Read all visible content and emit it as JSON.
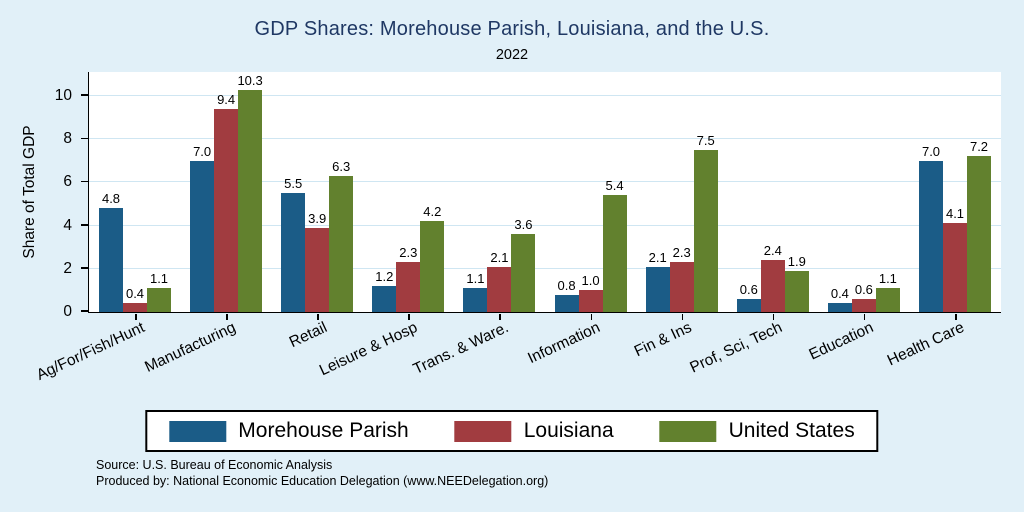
{
  "notes": {
    "source": "Source: U.S. Bureau of Economic Analysis",
    "produced_by": "Produced by: National Economic Education Delegation (www.NEEDelegation.org)"
  },
  "colors": {
    "background": "#e1f0f8",
    "plot_background": "#ffffff",
    "gridline": "#cfe6f2",
    "title": "#1f3864",
    "axis": "#000000",
    "morehouse_parish": "#1b5c87",
    "louisiana": "#a13c40",
    "united_states": "#62812e"
  },
  "chart_data": {
    "type": "bar",
    "title": "GDP Shares: Morehouse Parish, Louisiana, and the U.S.",
    "subtitle": "2022",
    "xlabel": "",
    "ylabel": "Share of Total GDP",
    "ylim": [
      0,
      11
    ],
    "yticks": [
      0,
      2,
      4,
      6,
      8,
      10
    ],
    "grid": true,
    "legend_position": "bottom",
    "categories": [
      "Ag/For/Fish/Hunt",
      "Manufacturing",
      "Retail",
      "Leisure & Hosp",
      "Trans. & Ware.",
      "Information",
      "Fin & Ins",
      "Prof, Sci, Tech",
      "Education",
      "Health Care"
    ],
    "series": [
      {
        "name": "Morehouse Parish",
        "color": "#1b5c87",
        "values": [
          4.8,
          7.0,
          5.5,
          1.2,
          1.1,
          0.8,
          2.1,
          0.6,
          0.4,
          7.0
        ]
      },
      {
        "name": "Louisiana",
        "color": "#a13c40",
        "values": [
          0.4,
          9.4,
          3.9,
          2.3,
          2.1,
          1.0,
          2.3,
          2.4,
          0.6,
          4.1
        ]
      },
      {
        "name": "United States",
        "color": "#62812e",
        "values": [
          1.1,
          10.3,
          6.3,
          4.2,
          3.6,
          5.4,
          7.5,
          1.9,
          1.1,
          7.2
        ]
      }
    ]
  }
}
